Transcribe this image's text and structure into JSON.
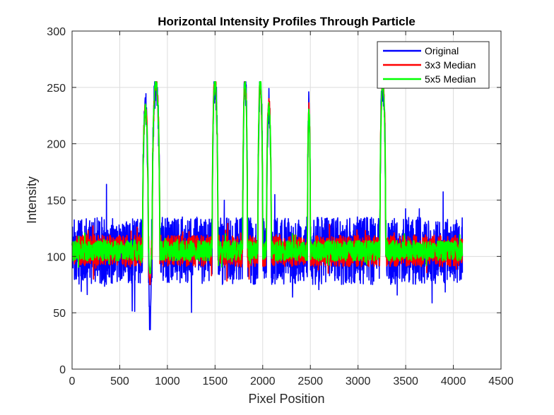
{
  "chart_data": {
    "type": "line",
    "title": "Horizontal Intensity Profiles Through Particle",
    "xlabel": "Pixel Position",
    "ylabel": "Intensity",
    "xlim": [
      0,
      4500
    ],
    "ylim": [
      0,
      300
    ],
    "xticks": [
      0,
      500,
      1000,
      1500,
      2000,
      2500,
      3000,
      3500,
      4000,
      4500
    ],
    "yticks": [
      0,
      50,
      100,
      150,
      200,
      250,
      300
    ],
    "grid": true,
    "legend_position": "top-right",
    "x_range": [
      1,
      4096
    ],
    "baseline": 105,
    "series": [
      {
        "name": "Original",
        "color": "#0000ff",
        "noise_amplitude": 30,
        "min_value": 35,
        "max_value": 255
      },
      {
        "name": "3x3 Median",
        "color": "#ff0000",
        "noise_amplitude": 14,
        "min_value": 75,
        "max_value": 255
      },
      {
        "name": "5x5 Median",
        "color": "#00ff00",
        "noise_amplitude": 9,
        "min_value": 85,
        "max_value": 255
      }
    ],
    "features": [
      {
        "x": [
          740,
          800
        ],
        "value": 230,
        "kind": "peak"
      },
      {
        "x": [
          805,
          830
        ],
        "value": 35,
        "kind": "dip"
      },
      {
        "x": [
          840,
          920
        ],
        "value": 255,
        "kind": "peak"
      },
      {
        "x": [
          1470,
          1530
        ],
        "value": 255,
        "kind": "peak"
      },
      {
        "x": [
          1790,
          1840
        ],
        "value": 255,
        "kind": "peak"
      },
      {
        "x": [
          1950,
          2000
        ],
        "value": 255,
        "kind": "peak"
      },
      {
        "x": [
          2040,
          2090
        ],
        "value": 235,
        "kind": "peak"
      },
      {
        "x": [
          2470,
          2500
        ],
        "value": 230,
        "kind": "peak"
      },
      {
        "x": [
          3230,
          3290
        ],
        "value": 255,
        "kind": "peak"
      }
    ]
  }
}
